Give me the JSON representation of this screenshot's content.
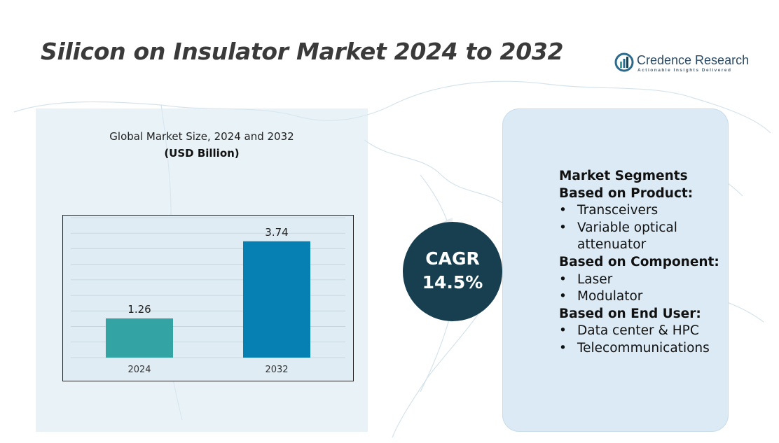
{
  "page": {
    "title": "Silicon on Insulator Market 2024 to 2032"
  },
  "logo": {
    "name": "Credence Research",
    "tagline": "Actionable Insights Delivered"
  },
  "chart_heading": {
    "title": "Global Market Size, 2024 and 2032",
    "unit": "(USD Billion)"
  },
  "chart_data": {
    "type": "bar",
    "categories": [
      "2024",
      "2032"
    ],
    "values": [
      1.26,
      3.74
    ],
    "data_labels": [
      "1.26",
      "3.74"
    ],
    "title": "Global Market Size, 2024 and 2032",
    "ylabel": "(USD Billion)",
    "ylim": [
      0,
      4.5
    ],
    "grid": true,
    "colors": [
      "#34a3a3",
      "#067fb3"
    ]
  },
  "cagr": {
    "label": "CAGR",
    "value": "14.5%"
  },
  "segments": {
    "heading": "Market Segments",
    "groups": [
      {
        "title": "Based on Product:",
        "items": [
          "Transceivers",
          "Variable optical attenuator"
        ]
      },
      {
        "title": "Based on Component:",
        "items": [
          "Laser",
          "Modulator"
        ]
      },
      {
        "title": "Based on End User:",
        "items": [
          "Data center & HPC",
          "Telecommunications"
        ]
      }
    ]
  },
  "colors": {
    "title_text": "#3a3a3a",
    "cagr_circle": "#173f4f",
    "panel_bg": "#dbeaf4"
  }
}
